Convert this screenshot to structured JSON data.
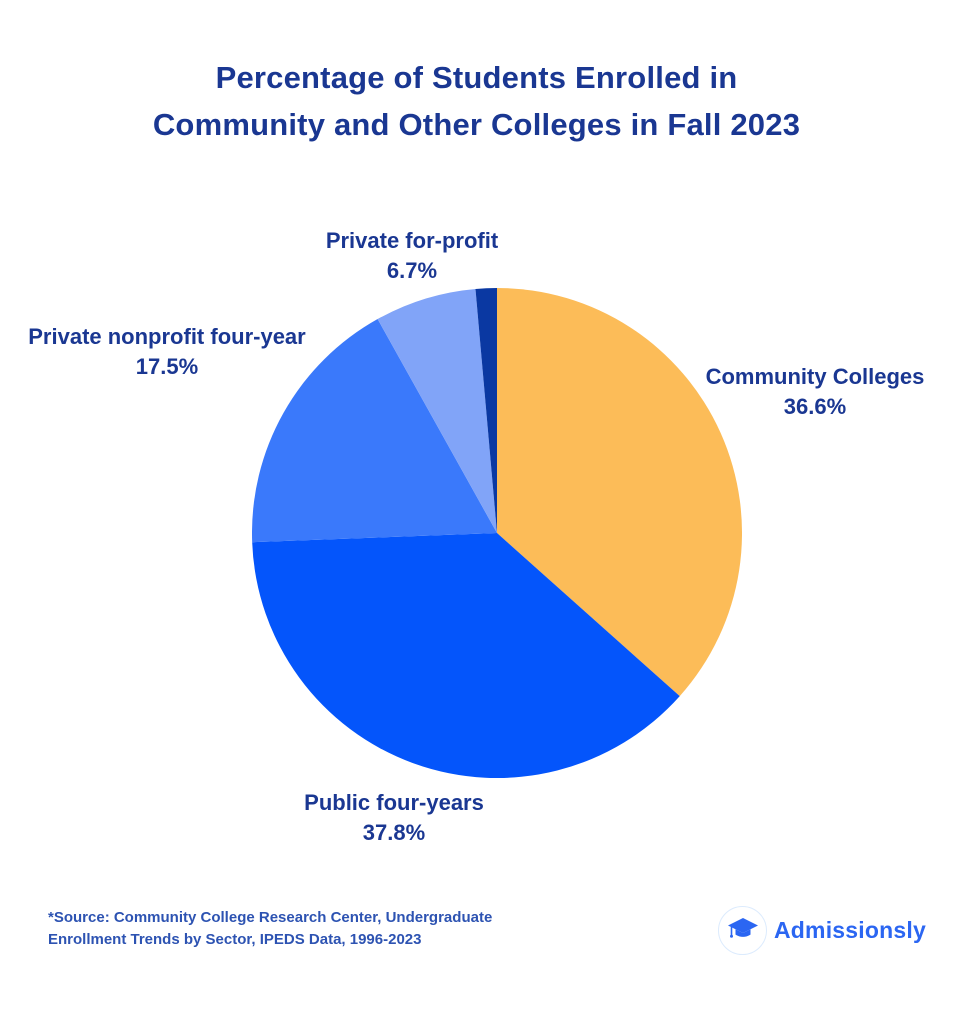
{
  "title": {
    "line1": "Percentage of Students Enrolled in",
    "line2": "Community and Other Colleges in Fall 2023"
  },
  "chart_data": {
    "type": "pie",
    "title": "Percentage of Students Enrolled in Community and Other Colleges in Fall 2023",
    "start_angle_deg": 0,
    "direction": "clockwise",
    "slices": [
      {
        "label": "Community Colleges",
        "value": 36.6,
        "display": "36.6%",
        "color": "#FCBC58"
      },
      {
        "label": "Public four-years",
        "value": 37.8,
        "display": "37.8%",
        "color": "#0455FB"
      },
      {
        "label": "Private nonprofit four-year",
        "value": 17.5,
        "display": "17.5%",
        "color": "#3A79FB"
      },
      {
        "label": "Private for-profit",
        "value": 6.7,
        "display": "6.7%",
        "color": "#81A4F8"
      },
      {
        "label": "",
        "value": 1.4,
        "display": "",
        "color": "#0A38A2"
      }
    ],
    "legend_position": "none",
    "labels_position": "outside"
  },
  "source": {
    "line1": "*Source: Community College Research Center, Undergraduate",
    "line2": "Enrollment Trends by Sector, IPEDS Data, 1996-2023"
  },
  "logo": {
    "brand": "Admissionsly",
    "icon": "graduation-cap-icon",
    "accent_color": "#2b66f2"
  },
  "colors": {
    "title_text": "#1a3792",
    "source_text": "#2d53b2",
    "background": "#ffffff"
  }
}
